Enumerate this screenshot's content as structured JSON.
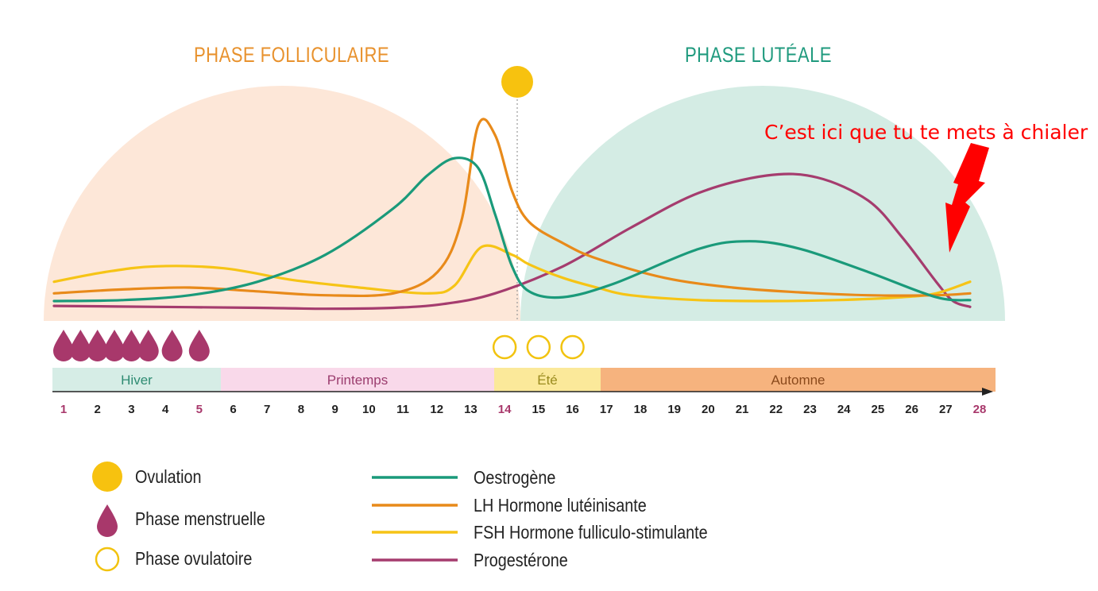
{
  "phases": {
    "follicular": "PHASE FOLLICULAIRE",
    "luteal": "PHASE LUTÉALE"
  },
  "annotation": "C’est ici que tu te mets à chialer",
  "seasons": [
    {
      "name": "Hiver",
      "start_day": 1,
      "end_day": 5,
      "color": "#d6ede6",
      "text_color": "#2e8b72"
    },
    {
      "name": "Printemps",
      "start_day": 6,
      "end_day": 13,
      "color": "#f9d9ea",
      "text_color": "#9b3d6e"
    },
    {
      "name": "Été",
      "start_day": 14,
      "end_day": 16,
      "color": "#fbe99a",
      "text_color": "#9a8b1e"
    },
    {
      "name": "Automne",
      "start_day": 17,
      "end_day": 28,
      "color": "#f6b37e",
      "text_color": "#8b4a1c"
    }
  ],
  "legend_markers": [
    {
      "label": "Ovulation",
      "icon": "sun-icon"
    },
    {
      "label": "Phase menstruelle",
      "icon": "drop-icon"
    },
    {
      "label": "Phase ovulatoire",
      "icon": "ring-icon"
    }
  ],
  "colors": {
    "follicular_bg": "#fde7d8",
    "luteal_bg": "#d4ece4",
    "ovulation": "#f7c20f",
    "menstrual": "#a8386b",
    "ovulatory_ring": "#f2c30f",
    "highlight_day": "#a8386b"
  },
  "chart_data": {
    "type": "line",
    "x": [
      1,
      2,
      3,
      4,
      5,
      6,
      7,
      8,
      9,
      10,
      11,
      12,
      13,
      14,
      15,
      16,
      17,
      18,
      19,
      20,
      21,
      22,
      23,
      24,
      25,
      26,
      27,
      28
    ],
    "xlim": [
      1,
      28
    ],
    "ylim": [
      0,
      100
    ],
    "highlight_days": [
      1,
      5,
      14,
      28
    ],
    "ovulation_day": 14,
    "menstrual_days": [
      1,
      1.5,
      2,
      2.5,
      3,
      3.5,
      4.2,
      5
    ],
    "ovulatory_days": [
      14,
      15,
      16
    ],
    "grid": false,
    "series": [
      {
        "name": "Oestrogène",
        "color": "#1a9a7a",
        "points": [
          [
            1,
            7
          ],
          [
            3,
            7.5
          ],
          [
            5,
            10
          ],
          [
            7,
            17
          ],
          [
            9,
            31
          ],
          [
            11,
            55
          ],
          [
            12,
            72
          ],
          [
            12.8,
            81
          ],
          [
            13.5,
            76
          ],
          [
            14,
            52
          ],
          [
            14.5,
            25
          ],
          [
            15,
            12
          ],
          [
            16,
            9
          ],
          [
            17.5,
            16
          ],
          [
            20,
            34
          ],
          [
            21.5,
            38
          ],
          [
            23,
            34
          ],
          [
            25,
            22
          ],
          [
            27,
            9
          ],
          [
            28,
            7.5
          ]
        ]
      },
      {
        "name": "LH Hormone lutéinisante",
        "color": "#e88a1a",
        "points": [
          [
            1,
            11
          ],
          [
            3,
            13
          ],
          [
            5,
            14
          ],
          [
            7,
            12
          ],
          [
            9,
            10
          ],
          [
            11,
            11
          ],
          [
            12.3,
            22
          ],
          [
            13,
            48
          ],
          [
            13.5,
            98
          ],
          [
            14,
            93
          ],
          [
            14.5,
            64
          ],
          [
            15,
            48
          ],
          [
            16,
            37
          ],
          [
            17,
            29
          ],
          [
            19,
            19
          ],
          [
            21,
            14
          ],
          [
            23,
            11.5
          ],
          [
            25,
            10
          ],
          [
            27,
            10
          ],
          [
            28,
            11
          ]
        ]
      },
      {
        "name": "FSH Hormone fulliculo-stimulante",
        "color": "#f6c416",
        "points": [
          [
            1,
            17
          ],
          [
            2.5,
            22
          ],
          [
            4,
            25
          ],
          [
            6,
            24
          ],
          [
            8,
            18
          ],
          [
            10,
            14
          ],
          [
            12,
            11
          ],
          [
            12.8,
            15
          ],
          [
            13.6,
            35
          ],
          [
            14.5,
            31
          ],
          [
            15,
            26
          ],
          [
            16,
            19
          ],
          [
            17,
            14
          ],
          [
            18,
            10
          ],
          [
            20,
            7.5
          ],
          [
            22,
            7
          ],
          [
            24,
            7.5
          ],
          [
            26,
            9
          ],
          [
            27,
            11
          ],
          [
            28,
            17
          ]
        ]
      },
      {
        "name": "Progestérone",
        "color": "#a53c6e",
        "points": [
          [
            1,
            4.5
          ],
          [
            4,
            4
          ],
          [
            7,
            3.5
          ],
          [
            9,
            3
          ],
          [
            11,
            3.5
          ],
          [
            12.5,
            5.5
          ],
          [
            14,
            11
          ],
          [
            16,
            25
          ],
          [
            18,
            45
          ],
          [
            20,
            63
          ],
          [
            22,
            72
          ],
          [
            23.5,
            71
          ],
          [
            25,
            59
          ],
          [
            26,
            40
          ],
          [
            27,
            17
          ],
          [
            27.5,
            7
          ],
          [
            28,
            4
          ]
        ]
      }
    ]
  }
}
